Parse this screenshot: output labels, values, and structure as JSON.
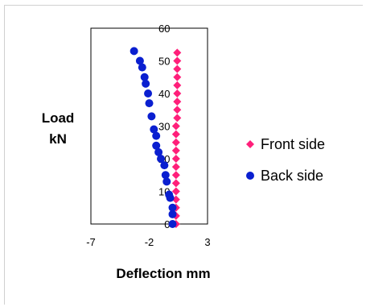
{
  "chart_data": {
    "type": "scatter",
    "xlabel": "Deflection mm",
    "ylabel_lines": [
      "Load",
      "kN"
    ],
    "xlim": [
      -7,
      3
    ],
    "ylim": [
      0,
      60
    ],
    "x_ticks": [
      -7,
      -2,
      3
    ],
    "y_ticks": [
      0,
      10,
      20,
      30,
      40,
      50,
      60
    ],
    "grid": false,
    "legend_position": "right",
    "series": [
      {
        "name": "Front side",
        "marker": "diamond",
        "color": "#ff1f7a",
        "points": [
          [
            0.3,
            0
          ],
          [
            0.3,
            2.5
          ],
          [
            0.3,
            5
          ],
          [
            0.3,
            7.5
          ],
          [
            0.3,
            10
          ],
          [
            0.3,
            12.5
          ],
          [
            0.3,
            15
          ],
          [
            0.3,
            17.5
          ],
          [
            0.3,
            20
          ],
          [
            0.3,
            22.5
          ],
          [
            0.3,
            25
          ],
          [
            0.3,
            27.5
          ],
          [
            0.3,
            30
          ],
          [
            0.4,
            32.5
          ],
          [
            0.4,
            35
          ],
          [
            0.4,
            37.5
          ],
          [
            0.4,
            40
          ],
          [
            0.4,
            42.5
          ],
          [
            0.4,
            45
          ],
          [
            0.4,
            47.5
          ],
          [
            0.4,
            50
          ],
          [
            0.4,
            52.5
          ]
        ]
      },
      {
        "name": "Back side",
        "marker": "circle",
        "color": "#0a1fd0",
        "points": [
          [
            0,
            0
          ],
          [
            0,
            3
          ],
          [
            0,
            5
          ],
          [
            -0.2,
            8
          ],
          [
            -0.3,
            9
          ],
          [
            -0.5,
            13
          ],
          [
            -0.6,
            15
          ],
          [
            -0.7,
            18
          ],
          [
            -1.0,
            20
          ],
          [
            -1.2,
            22
          ],
          [
            -1.4,
            24
          ],
          [
            -1.4,
            27
          ],
          [
            -1.6,
            29
          ],
          [
            -1.8,
            33
          ],
          [
            -2.0,
            37
          ],
          [
            -2.1,
            40
          ],
          [
            -2.3,
            43
          ],
          [
            -2.4,
            45
          ],
          [
            -2.6,
            48
          ],
          [
            -2.8,
            50
          ],
          [
            -3.3,
            53
          ]
        ]
      }
    ]
  }
}
